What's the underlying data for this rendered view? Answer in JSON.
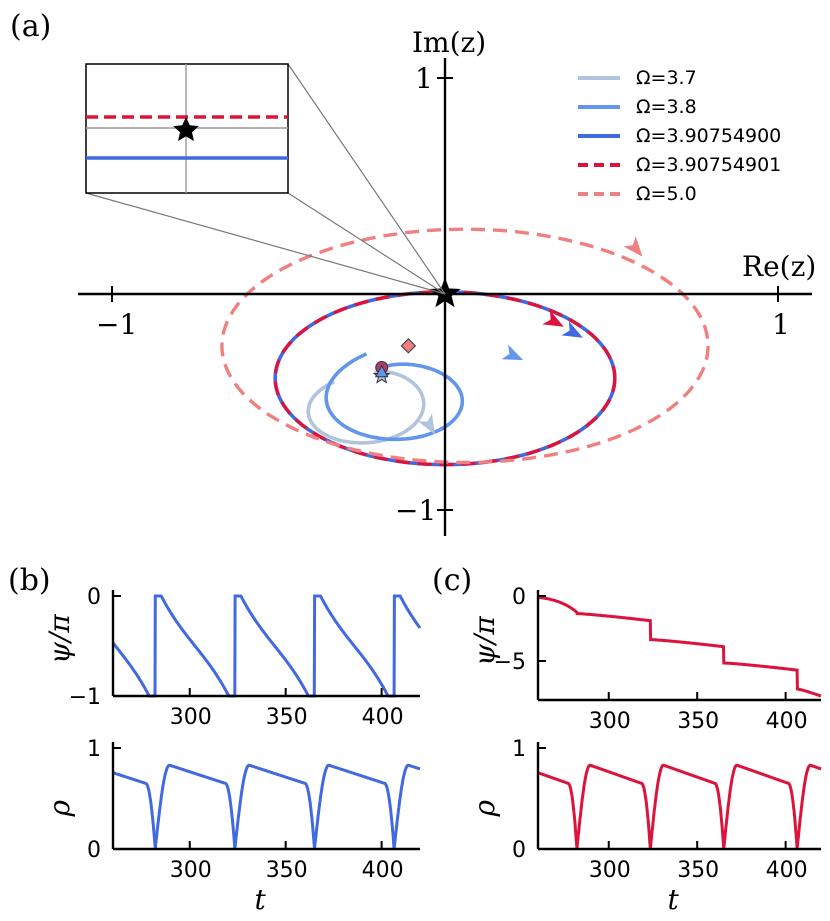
{
  "panel_labels": {
    "a": "(a)",
    "b": "(b)",
    "c": "(c)"
  },
  "colors": {
    "omega_3_7": "#b0c4de",
    "omega_3_8": "#6495ed",
    "omega_3_90754900": "#4169e1",
    "omega_3_90754901": "#dc143c",
    "omega_5_0": "#f08080"
  },
  "chart_data": [
    {
      "id": "a",
      "type": "line",
      "title": "",
      "xlabel": "Re(z)",
      "ylabel": "Im(z)",
      "xlim": [
        -1.1,
        1.1
      ],
      "ylim": [
        -1.1,
        1.1
      ],
      "ticks": {
        "x": [
          -1,
          1
        ],
        "y": [
          1,
          -1
        ]
      },
      "tick_labels": {
        "x": [
          "−1",
          "1"
        ],
        "y": [
          "1",
          "−1"
        ]
      },
      "legend": [
        "Ω=3.7",
        "Ω=3.8",
        "Ω=3.90754900",
        "Ω=3.90754901",
        "Ω=5.0"
      ],
      "legend_position": "top-right",
      "series": [
        {
          "name": "Ω=3.7",
          "style": "solid",
          "shape": "spiral",
          "center": [
            -0.18,
            -0.6
          ],
          "rx": 0.26,
          "ry": 0.24
        },
        {
          "name": "Ω=3.8",
          "style": "solid",
          "shape": "spiral",
          "center": [
            -0.03,
            -0.52
          ],
          "rx": 0.35,
          "ry": 0.3
        },
        {
          "name": "Ω=3.90754900",
          "style": "solid",
          "shape": "ellipse",
          "center": [
            0.0,
            -0.39
          ],
          "rx": 0.51,
          "ry": 0.4
        },
        {
          "name": "Ω=3.90754901",
          "style": "dashed",
          "shape": "ellipse",
          "center": [
            0.0,
            -0.39
          ],
          "rx": 0.51,
          "ry": 0.4
        },
        {
          "name": "Ω=5.0",
          "style": "dashed",
          "shape": "ellipse",
          "center": [
            0.06,
            -0.24
          ],
          "rx": 0.73,
          "ry": 0.54
        }
      ],
      "markers": [
        {
          "kind": "star",
          "x": 0.0,
          "y": 0.0
        },
        {
          "kind": "diamond",
          "x": -0.11,
          "y": -0.24
        },
        {
          "kind": "circle",
          "x": -0.19,
          "y": -0.34
        },
        {
          "kind": "star",
          "x": -0.19,
          "y": -0.38
        },
        {
          "kind": "triangle",
          "x": -0.19,
          "y": -0.36
        }
      ],
      "inset": {
        "description": "zoom near origin",
        "marker": "star"
      }
    },
    {
      "id": "b_top",
      "type": "line",
      "xlabel": "",
      "ylabel": "ψ/π",
      "xlim": [
        260,
        420
      ],
      "ylim": [
        -1,
        0
      ],
      "xticks": [
        "300",
        "350",
        "400"
      ],
      "yticks": [
        "0",
        "−1"
      ],
      "series": [
        {
          "name": "Ω=3.90754900",
          "shape": "sawtooth",
          "period": 41.5,
          "drops_at": [
            282,
            323.5,
            365,
            406.5
          ]
        }
      ]
    },
    {
      "id": "b_bottom",
      "type": "line",
      "xlabel": "t",
      "ylabel": "ρ",
      "xlim": [
        260,
        420
      ],
      "ylim": [
        0,
        1
      ],
      "xticks": [
        "300",
        "350",
        "400"
      ],
      "yticks": [
        "1",
        "0"
      ],
      "series": [
        {
          "name": "Ω=3.90754900",
          "shape": "spikes",
          "period": 41.5,
          "minima_at": [
            282,
            323.5,
            365,
            406.5
          ],
          "peak": 0.83
        }
      ]
    },
    {
      "id": "c_top",
      "type": "line",
      "xlabel": "",
      "ylabel": "ψ/π",
      "xlim": [
        260,
        420
      ],
      "ylim": [
        -8,
        0
      ],
      "xticks": [
        "300",
        "350",
        "400"
      ],
      "yticks": [
        "0",
        "−5"
      ],
      "series": [
        {
          "name": "Ω=3.90754901",
          "shape": "staircase",
          "drops_at": [
            282,
            323.5,
            365,
            406.5
          ],
          "step": -2
        }
      ]
    },
    {
      "id": "c_bottom",
      "type": "line",
      "xlabel": "t",
      "ylabel": "ρ",
      "xlim": [
        260,
        420
      ],
      "ylim": [
        0,
        1
      ],
      "xticks": [
        "300",
        "350",
        "400"
      ],
      "yticks": [
        "1",
        "0"
      ],
      "series": [
        {
          "name": "Ω=3.90754901",
          "shape": "spikes",
          "period": 41.5,
          "minima_at": [
            282,
            323.5,
            365,
            406.5
          ],
          "peak": 0.83
        }
      ]
    }
  ]
}
